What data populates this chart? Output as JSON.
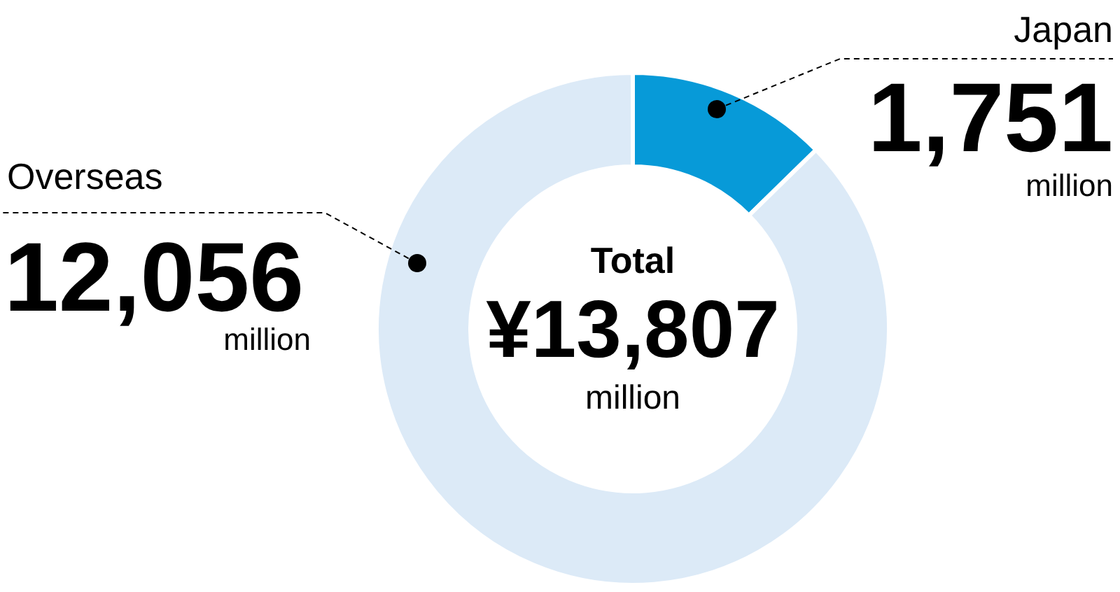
{
  "chart_data": {
    "type": "donut",
    "categories": [
      "Japan",
      "Overseas"
    ],
    "values": [
      1751,
      12056
    ],
    "colors": [
      "#079ad8",
      "#dceaf7"
    ],
    "value_labels": [
      "1,751",
      "12,056"
    ],
    "annotations": [
      "Total",
      "¥13,807",
      "million",
      "million",
      "million"
    ]
  }
}
